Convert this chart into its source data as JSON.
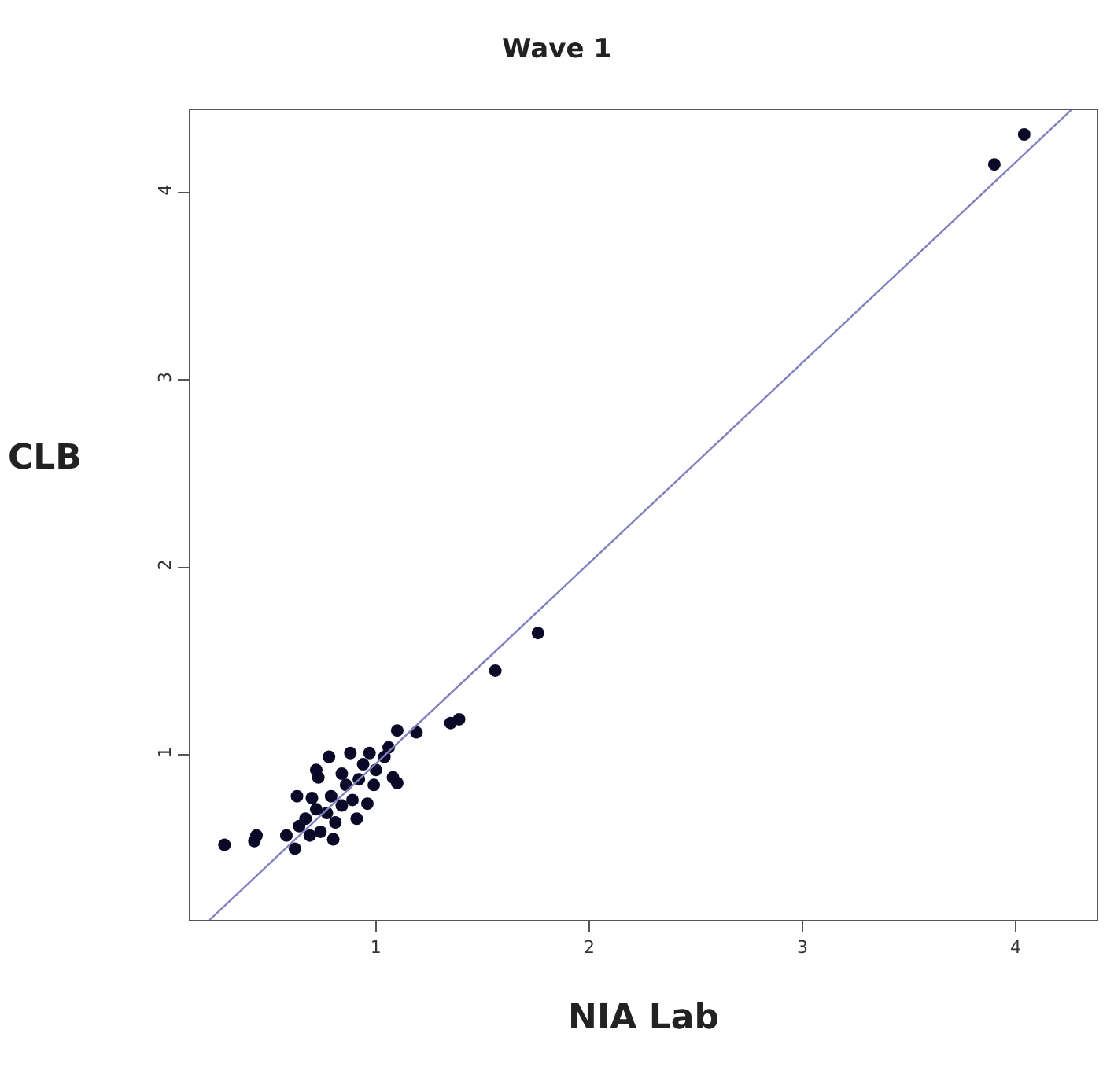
{
  "chart_data": {
    "type": "scatter",
    "title": "Wave 1",
    "xlabel": "NIA Lab",
    "ylabel": "CLB",
    "xlim": [
      0.13,
      4.38
    ],
    "ylim": [
      0.12,
      4.44
    ],
    "xticks": [
      1,
      2,
      3,
      4
    ],
    "yticks": [
      1,
      2,
      3,
      4
    ],
    "marker": "circle",
    "series": [
      {
        "color": "#0a0a28",
        "x": [
          4.04,
          3.9,
          1.76,
          1.56,
          1.39,
          1.35,
          0.29,
          0.44,
          0.43,
          1.1,
          1.19,
          1.06,
          1.08,
          1.1,
          0.78,
          0.88,
          0.97,
          0.72,
          0.73,
          0.63,
          0.7,
          0.58,
          0.62,
          0.8,
          0.91,
          0.86,
          0.94,
          0.99,
          0.96,
          0.79,
          0.77,
          0.67,
          0.74,
          0.84,
          0.89,
          0.81,
          0.69,
          1.0,
          1.04,
          0.92,
          0.84,
          0.72,
          0.64
        ],
        "values": [
          4.31,
          4.15,
          1.65,
          1.45,
          1.19,
          1.17,
          0.52,
          0.57,
          0.54,
          1.13,
          1.12,
          1.04,
          0.88,
          0.85,
          0.99,
          1.01,
          1.01,
          0.92,
          0.88,
          0.78,
          0.77,
          0.57,
          0.5,
          0.55,
          0.66,
          0.84,
          0.95,
          0.84,
          0.74,
          0.78,
          0.69,
          0.66,
          0.59,
          0.9,
          0.76,
          0.64,
          0.57,
          0.92,
          0.99,
          0.87,
          0.73,
          0.71,
          0.62
        ]
      },
      {
        "type": "line",
        "color": "#8080c0",
        "line_style": "solid",
        "marker": "none",
        "x": [
          0.22,
          4.26
        ],
        "values": [
          0.12,
          4.44
        ]
      }
    ]
  }
}
